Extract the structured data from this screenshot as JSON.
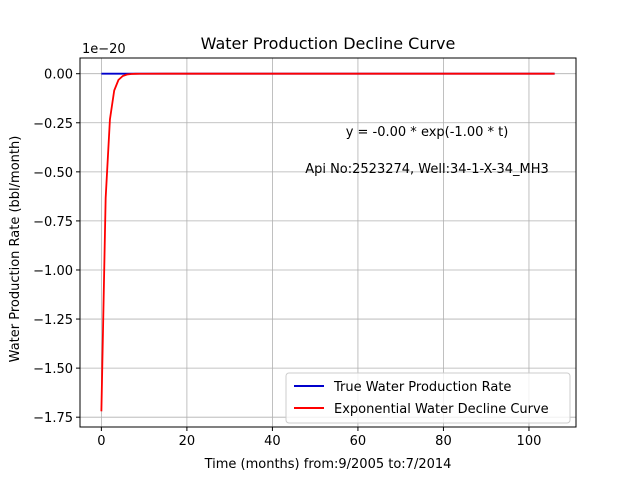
{
  "chart_data": {
    "type": "line",
    "title": "Water Production Decline Curve",
    "xlabel": "Time (months) from:9/2005 to:7/2014",
    "ylabel": "Water Production Rate (bbl/month)",
    "y_offset_label": "1e−20",
    "xlim": [
      -5,
      111
    ],
    "ylim": [
      -1.8,
      0.08
    ],
    "x_ticks": [
      0,
      20,
      40,
      60,
      80,
      100
    ],
    "x_tick_labels": [
      "0",
      "20",
      "40",
      "60",
      "80",
      "100"
    ],
    "y_ticks": [
      0.0,
      -0.25,
      -0.5,
      -0.75,
      -1.0,
      -1.25,
      -1.5,
      -1.75
    ],
    "y_tick_labels": [
      "0.00",
      "−0.25",
      "−0.50",
      "−0.75",
      "−1.00",
      "−1.25",
      "−1.50",
      "−1.75"
    ],
    "grid": true,
    "legend_position": "lower-right",
    "annotations": [
      "y = -0.00 * exp(-1.00 * t)",
      "Api No:2523274, Well:34-1-X-34_MH3"
    ],
    "series": [
      {
        "name": "True Water Production Rate",
        "color": "#0000cc",
        "x": [
          0,
          106
        ],
        "y": [
          0.0,
          0.0
        ]
      },
      {
        "name": "Exponential Water Decline Curve",
        "color": "#ff0000",
        "x": [
          0,
          1,
          2,
          3,
          4,
          5,
          6,
          7,
          8,
          9,
          10,
          15,
          20,
          40,
          60,
          80,
          100,
          106
        ],
        "y": [
          -1.72,
          -0.633,
          -0.233,
          -0.0856,
          -0.0315,
          -0.0116,
          -0.00427,
          -0.00157,
          -0.000577,
          -0.000212,
          -7.81e-05,
          0,
          0,
          0,
          0,
          0,
          0,
          0
        ]
      }
    ]
  }
}
